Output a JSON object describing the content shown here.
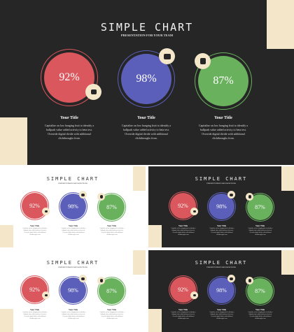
{
  "title": "SIMPLE CHART",
  "subtitle": "PRESENTATION FOR YOUR TEAM",
  "items": [
    {
      "value": "92%",
      "color": "#d9575d",
      "icon": "inbox-icon",
      "caption_title": "Your Title",
      "caption_text": "Capitalise on low hanging fruit to identify a ballpark value added activity to beta test. Override digital divide with additional clickthroughs from."
    },
    {
      "value": "98%",
      "color": "#5b5fb9",
      "icon": "wallet-icon",
      "caption_title": "Your Title",
      "caption_text": "Capitalise on low hanging fruit to identify a ballpark value added activity to beta test. Override digital divide with additional clickthroughs from."
    },
    {
      "value": "87%",
      "color": "#6ab15e",
      "icon": "calendar-icon",
      "caption_title": "Your Title",
      "caption_text": "Capitalise on low hanging fruit to identify a ballpark value added activity to beta test. Override digital divide with additional clickthroughs from."
    }
  ],
  "colors": {
    "dark_bg": "#262626",
    "accent": "#f4e6c8"
  }
}
